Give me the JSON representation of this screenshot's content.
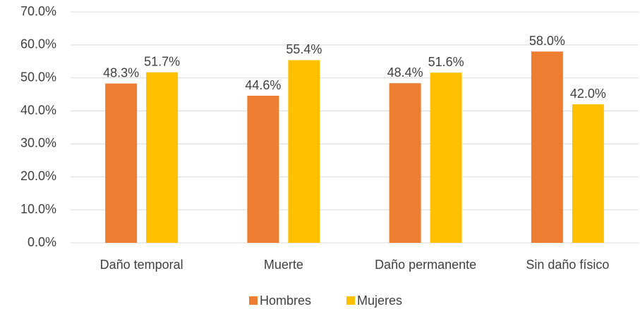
{
  "chart_data": {
    "type": "bar",
    "categories": [
      "Daño temporal",
      "Muerte",
      "Daño permanente",
      "Sin daño físico"
    ],
    "series": [
      {
        "name": "Hombres",
        "color": "#ed7d31",
        "values": [
          48.3,
          44.6,
          48.4,
          58.0
        ],
        "value_labels": [
          "48.3%",
          "44.6%",
          "48.4%",
          "58.0%"
        ]
      },
      {
        "name": "Mujeres",
        "color": "#ffc000",
        "values": [
          51.7,
          55.4,
          51.6,
          42.0
        ],
        "value_labels": [
          "51.7%",
          "55.4%",
          "51.6%",
          "42.0%"
        ]
      }
    ],
    "ylim": [
      0,
      70
    ],
    "yticks": [
      {
        "value": 0,
        "label": "0.0%"
      },
      {
        "value": 10,
        "label": "10.0%"
      },
      {
        "value": 20,
        "label": "20.0%"
      },
      {
        "value": 30,
        "label": "30.0%"
      },
      {
        "value": 40,
        "label": "40.0%"
      },
      {
        "value": 50,
        "label": "50.0%"
      },
      {
        "value": 60,
        "label": "60.0%"
      },
      {
        "value": 70,
        "label": "70.0%"
      }
    ],
    "grid": true,
    "legend": "bottom"
  }
}
